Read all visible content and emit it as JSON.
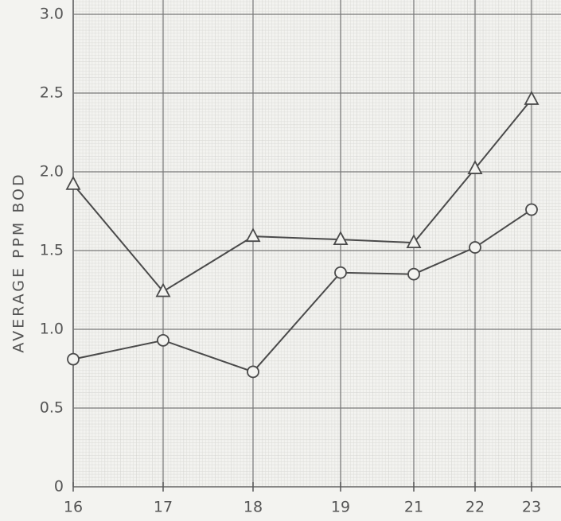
{
  "chart_data": {
    "type": "line",
    "y_label": "AVERAGE PPM BOD",
    "categories": [
      "16",
      "17",
      "18",
      "19",
      "21",
      "22",
      "23"
    ],
    "series": [
      {
        "color": "#4a4a4a",
        "marker": "triangle",
        "values": [
          1.92,
          1.24,
          1.59,
          1.57,
          1.55,
          2.02,
          2.46
        ]
      },
      {
        "color": "#4a4a4a",
        "marker": "circle",
        "values": [
          0.81,
          0.93,
          0.73,
          1.36,
          1.35,
          1.52,
          1.76
        ]
      }
    ],
    "ylim": [
      0,
      3.0
    ],
    "yticks": [
      0,
      {
        "value": 0.5,
        "label": "0.5"
      },
      {
        "value": 1,
        "label": "1.0"
      },
      {
        "value": 1.5,
        "label": "1.5"
      },
      {
        "value": 2,
        "label": "2.0"
      },
      {
        "value": 2.5,
        "label": "2.5"
      },
      {
        "value": 3,
        "label": "3.0"
      }
    ],
    "grid": true
  }
}
